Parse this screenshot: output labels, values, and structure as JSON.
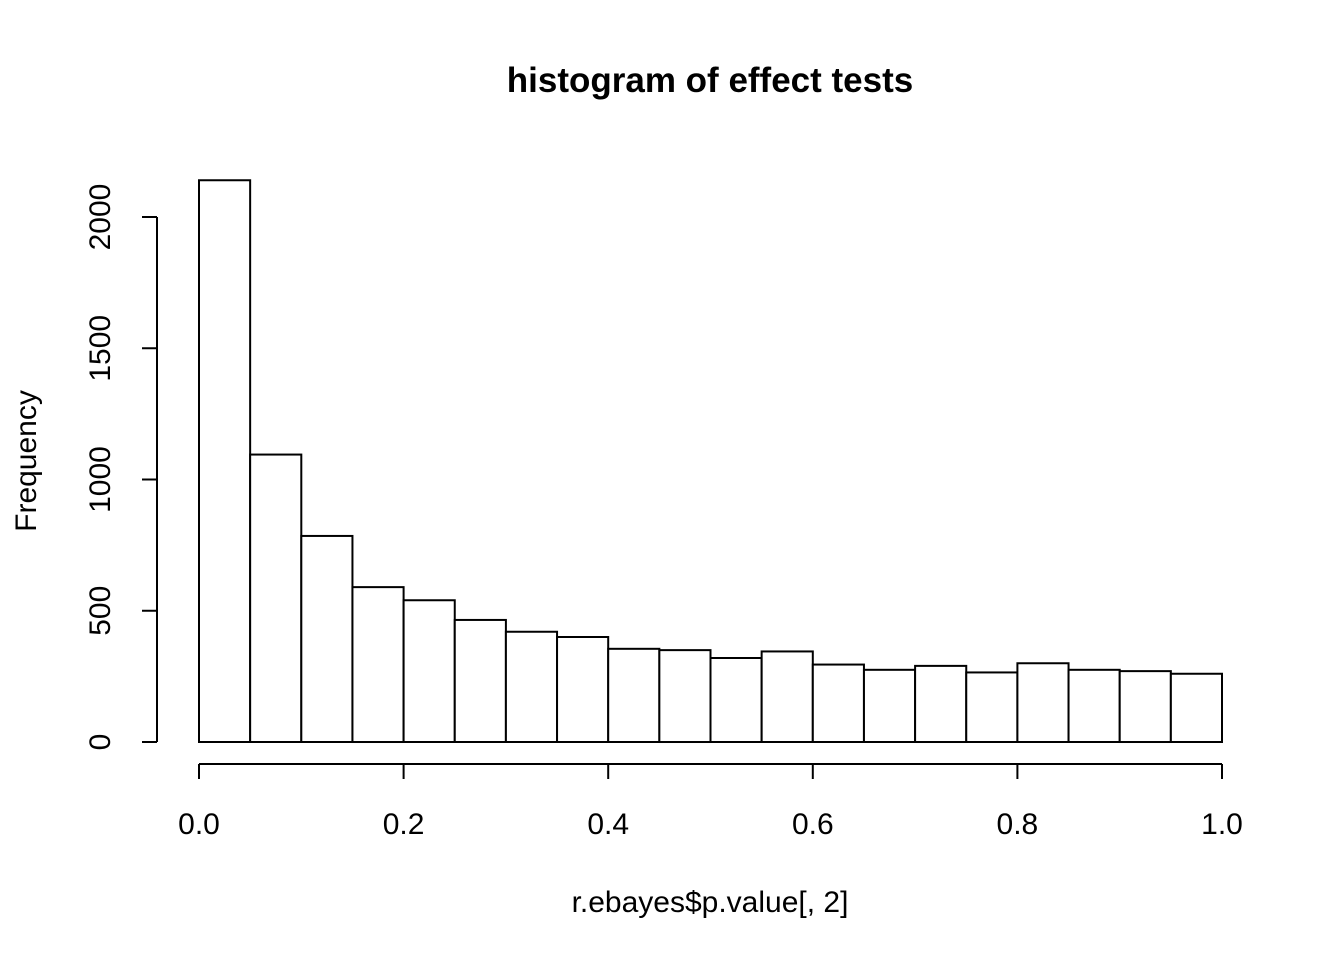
{
  "chart_data": {
    "type": "bar",
    "title": "histogram of effect tests",
    "xlabel": "r.ebayes$p.value[, 2]",
    "ylabel": "Frequency",
    "bin_edges": [
      0.0,
      0.05,
      0.1,
      0.15,
      0.2,
      0.25,
      0.3,
      0.35,
      0.4,
      0.45,
      0.5,
      0.55,
      0.6,
      0.65,
      0.7,
      0.75,
      0.8,
      0.85,
      0.9,
      0.95,
      1.0
    ],
    "values": [
      2140,
      1095,
      785,
      590,
      540,
      465,
      420,
      400,
      355,
      350,
      320,
      345,
      295,
      275,
      290,
      265,
      300,
      275,
      270,
      260
    ],
    "xlim": [
      0.0,
      1.0
    ],
    "ylim": [
      0,
      2140
    ],
    "x_ticks": [
      0.0,
      0.2,
      0.4,
      0.6,
      0.8,
      1.0
    ],
    "x_tick_labels": [
      "0.0",
      "0.2",
      "0.4",
      "0.6",
      "0.8",
      "1.0"
    ],
    "y_ticks": [
      0,
      500,
      1000,
      1500,
      2000
    ],
    "y_tick_labels": [
      "0",
      "500",
      "1000",
      "1500",
      "2000"
    ],
    "bar_fill": "#ffffff",
    "bar_stroke": "#000000",
    "grid": false,
    "legend": "none"
  }
}
